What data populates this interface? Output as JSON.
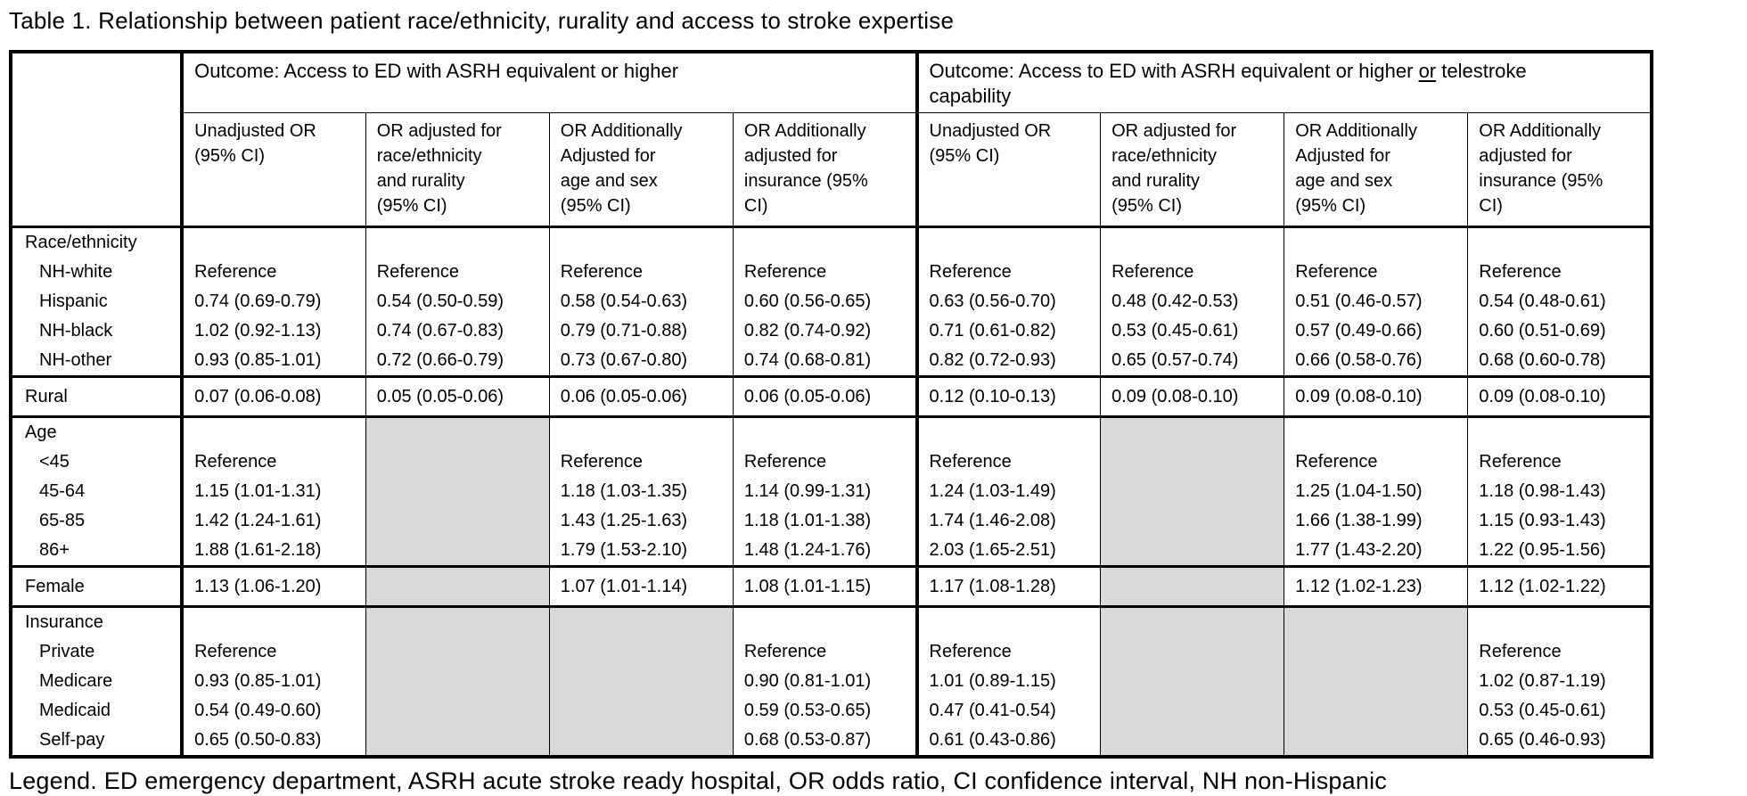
{
  "title": "Table 1. Relationship between patient race/ethnicity, rurality and access to stroke expertise",
  "legend": "Legend. ED emergency department, ASRH acute stroke ready hospital, OR odds ratio, CI confidence interval, NH non-Hispanic",
  "table": {
    "shade_color": "#d9d9d9",
    "group_header_1": "Outcome: Access to ED with ASRH equivalent or higher",
    "group_header_2": {
      "pre": "Outcome: Access to ED with ASRH equivalent or higher ",
      "underline": "or",
      "post": " telestroke\ncapability"
    },
    "column_headers": [
      "Unadjusted OR\n(95% CI)",
      "OR adjusted for\nrace/ethnicity\nand rurality\n(95% CI)",
      "OR Additionally\nAdjusted for\nage and sex\n(95% CI)",
      "OR Additionally\nadjusted for\ninsurance (95%\nCI)",
      "Unadjusted OR\n(95% CI)",
      "OR adjusted for\nrace/ethnicity\nand rurality\n(95% CI)",
      "OR Additionally\nAdjusted for\nage and sex\n(95% CI)",
      "OR Additionally\nadjusted for\ninsurance (95%\nCI)"
    ],
    "sections": [
      {
        "header": "Race/ethnicity",
        "single": false,
        "shaded_cols": [],
        "rows": [
          {
            "label": "NH-white",
            "cells": [
              "Reference",
              "Reference",
              "Reference",
              "Reference",
              "Reference",
              "Reference",
              "Reference",
              "Reference"
            ]
          },
          {
            "label": "Hispanic",
            "cells": [
              "0.74 (0.69-0.79)",
              "0.54 (0.50-0.59)",
              "0.58 (0.54-0.63)",
              "0.60 (0.56-0.65)",
              "0.63 (0.56-0.70)",
              "0.48 (0.42-0.53)",
              "0.51 (0.46-0.57)",
              "0.54 (0.48-0.61)"
            ]
          },
          {
            "label": "NH-black",
            "cells": [
              "1.02 (0.92-1.13)",
              "0.74 (0.67-0.83)",
              "0.79 (0.71-0.88)",
              "0.82 (0.74-0.92)",
              "0.71 (0.61-0.82)",
              "0.53 (0.45-0.61)",
              "0.57 (0.49-0.66)",
              "0.60 (0.51-0.69)"
            ]
          },
          {
            "label": "NH-other",
            "cells": [
              "0.93 (0.85-1.01)",
              "0.72 (0.66-0.79)",
              "0.73 (0.67-0.80)",
              "0.74 (0.68-0.81)",
              "0.82 (0.72-0.93)",
              "0.65 (0.57-0.74)",
              "0.66 (0.58-0.76)",
              "0.68 (0.60-0.78)"
            ]
          }
        ]
      },
      {
        "header": null,
        "single": true,
        "shaded_cols": [],
        "rows": [
          {
            "label": "Rural",
            "cells": [
              "0.07 (0.06-0.08)",
              "0.05 (0.05-0.06)",
              "0.06 (0.05-0.06)",
              "0.06 (0.05-0.06)",
              "0.12 (0.10-0.13)",
              "0.09 (0.08-0.10)",
              "0.09 (0.08-0.10)",
              "0.09 (0.08-0.10)"
            ]
          }
        ]
      },
      {
        "header": "Age",
        "single": false,
        "shaded_cols": [
          1,
          5
        ],
        "rows": [
          {
            "label": "<45",
            "cells": [
              "Reference",
              null,
              "Reference",
              "Reference",
              "Reference",
              null,
              "Reference",
              "Reference"
            ]
          },
          {
            "label": "45-64",
            "cells": [
              "1.15 (1.01-1.31)",
              null,
              "1.18 (1.03-1.35)",
              "1.14 (0.99-1.31)",
              "1.24 (1.03-1.49)",
              null,
              "1.25 (1.04-1.50)",
              "1.18 (0.98-1.43)"
            ]
          },
          {
            "label": "65-85",
            "cells": [
              "1.42 (1.24-1.61)",
              null,
              "1.43 (1.25-1.63)",
              "1.18 (1.01-1.38)",
              "1.74 (1.46-2.08)",
              null,
              "1.66 (1.38-1.99)",
              "1.15 (0.93-1.43)"
            ]
          },
          {
            "label": "86+",
            "cells": [
              "1.88 (1.61-2.18)",
              null,
              "1.79 (1.53-2.10)",
              "1.48 (1.24-1.76)",
              "2.03 (1.65-2.51)",
              null,
              "1.77 (1.43-2.20)",
              "1.22 (0.95-1.56)"
            ]
          }
        ]
      },
      {
        "header": null,
        "single": true,
        "shaded_cols": [
          1,
          5
        ],
        "rows": [
          {
            "label": "Female",
            "cells": [
              "1.13 (1.06-1.20)",
              null,
              "1.07 (1.01-1.14)",
              "1.08 (1.01-1.15)",
              "1.17 (1.08-1.28)",
              null,
              "1.12 (1.02-1.23)",
              "1.12 (1.02-1.22)"
            ]
          }
        ]
      },
      {
        "header": "Insurance",
        "single": false,
        "shaded_cols": [
          1,
          2,
          5,
          6
        ],
        "rows": [
          {
            "label": "Private",
            "cells": [
              "Reference",
              null,
              null,
              "Reference",
              "Reference",
              null,
              null,
              "Reference"
            ]
          },
          {
            "label": "Medicare",
            "cells": [
              "0.93 (0.85-1.01)",
              null,
              null,
              "0.90 (0.81-1.01)",
              "1.01 (0.89-1.15)",
              null,
              null,
              "1.02 (0.87-1.19)"
            ]
          },
          {
            "label": "Medicaid",
            "cells": [
              "0.54 (0.49-0.60)",
              null,
              null,
              "0.59 (0.53-0.65)",
              "0.47 (0.41-0.54)",
              null,
              null,
              "0.53 (0.45-0.61)"
            ]
          },
          {
            "label": "Self-pay",
            "cells": [
              "0.65 (0.50-0.83)",
              null,
              null,
              "0.68 (0.53-0.87)",
              "0.61 (0.43-0.86)",
              null,
              null,
              "0.65 (0.46-0.93)"
            ]
          }
        ]
      }
    ]
  }
}
